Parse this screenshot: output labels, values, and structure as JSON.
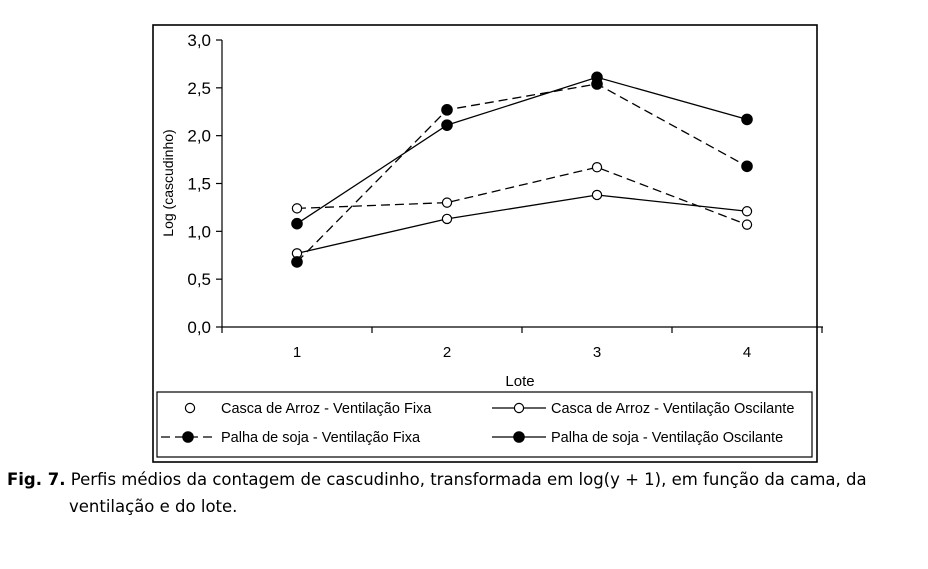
{
  "chart_data": {
    "type": "line",
    "xlabel": "Lote",
    "ylabel": "Log (cascudinho)",
    "categories": [
      "1",
      "2",
      "3",
      "4"
    ],
    "ylim": [
      0,
      3
    ],
    "yticks": [
      "0,0",
      "0,5",
      "1,0",
      "1,5",
      "2,0",
      "2,5",
      "3,0"
    ],
    "grid": false,
    "legend_position": "bottom",
    "series": [
      {
        "name": "Casca de Arroz - Ventilação Fixa",
        "marker": "open",
        "line": "dashed",
        "values": [
          1.24,
          1.3,
          1.67,
          1.07
        ]
      },
      {
        "name": "Casca de Arroz - Ventilação Oscilante",
        "marker": "open",
        "line": "solid",
        "values": [
          0.77,
          1.13,
          1.38,
          1.21
        ]
      },
      {
        "name": "Palha de soja - Ventilação Fixa",
        "marker": "filled",
        "line": "dashed",
        "values": [
          0.68,
          2.27,
          2.54,
          1.68
        ]
      },
      {
        "name": "Palha de soja - Ventilação Oscilante",
        "marker": "filled",
        "line": "solid",
        "values": [
          1.08,
          2.11,
          2.61,
          2.17
        ]
      }
    ]
  },
  "caption": {
    "label": "Fig. 7.",
    "line1": "Perfis médios da contagem de cascudinho, transformada em log(y + 1), em função da cama,  da",
    "line2": "ventilação e do lote."
  }
}
